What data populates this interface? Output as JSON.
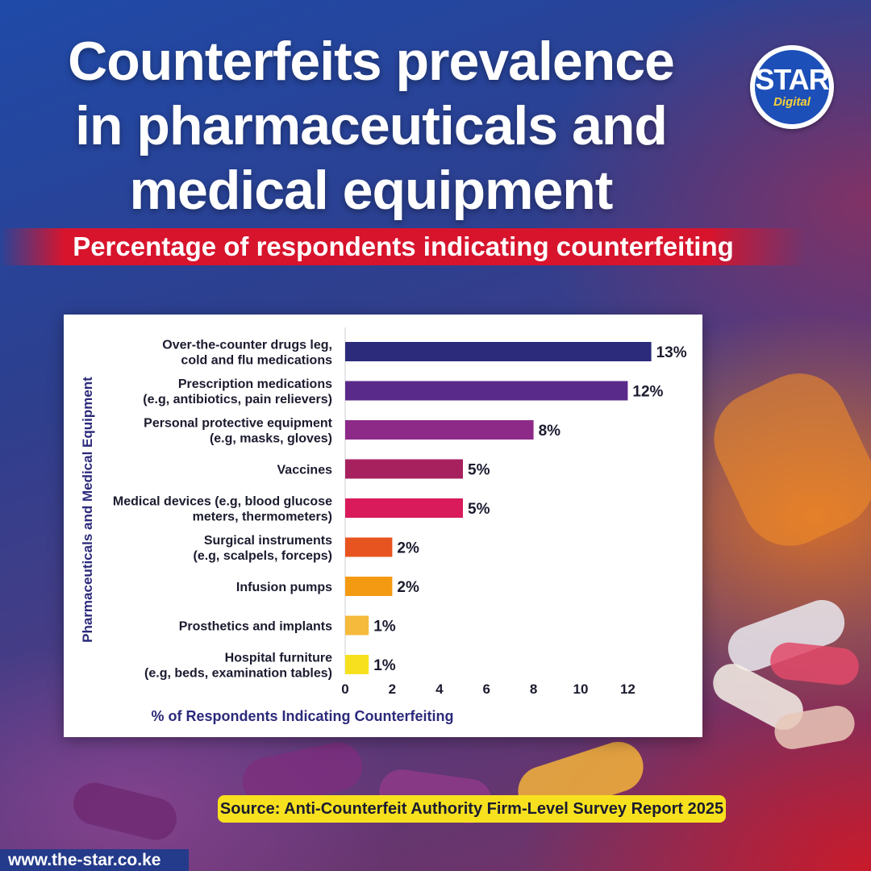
{
  "header": {
    "title_lines": [
      "Counterfeits prevalence",
      "in pharmaceuticals and",
      "medical equipment"
    ],
    "subtitle": "Percentage of respondents indicating counterfeiting"
  },
  "logo": {
    "main": "STAR",
    "sub": "Digital"
  },
  "footer": {
    "source": "Source: Anti-Counterfeit Authority Firm-Level Survey Report 2025",
    "url": "www.the-star.co.ke"
  },
  "chart_data": {
    "type": "bar",
    "orientation": "horizontal",
    "categories": [
      [
        "Over-the-counter drugs leg,",
        "cold and flu medications"
      ],
      [
        "Prescription medications",
        "(e.g, antibiotics, pain relievers)"
      ],
      [
        "Personal protective equipment",
        "(e.g, masks, gloves)"
      ],
      [
        "Vaccines"
      ],
      [
        "Medical devices (e.g, blood glucose",
        "meters, thermometers)"
      ],
      [
        "Surgical instruments",
        "(e.g, scalpels, forceps)"
      ],
      [
        "Infusion pumps"
      ],
      [
        "Prosthetics and implants"
      ],
      [
        "Hospital furniture",
        "(e.g, beds, examination tables)"
      ]
    ],
    "values": [
      13,
      12,
      8,
      5,
      5,
      2,
      2,
      1,
      1
    ],
    "value_labels": [
      "13%",
      "12%",
      "8%",
      "5%",
      "5%",
      "2%",
      "2%",
      "1%",
      "1%"
    ],
    "colors": [
      "#2b2a7b",
      "#5a2a8a",
      "#8d2a88",
      "#a7215f",
      "#d91a5b",
      "#e8541f",
      "#f49a12",
      "#f5b93b",
      "#f7e11e"
    ],
    "xlabel": "% of Respondents Indicating Counterfeiting",
    "ylabel": "Pharmaceuticals and Medical Equipment",
    "xticks": [
      0,
      2,
      4,
      6,
      8,
      10,
      12
    ],
    "xlim": [
      0,
      13
    ],
    "grid": false,
    "legend": "none"
  }
}
